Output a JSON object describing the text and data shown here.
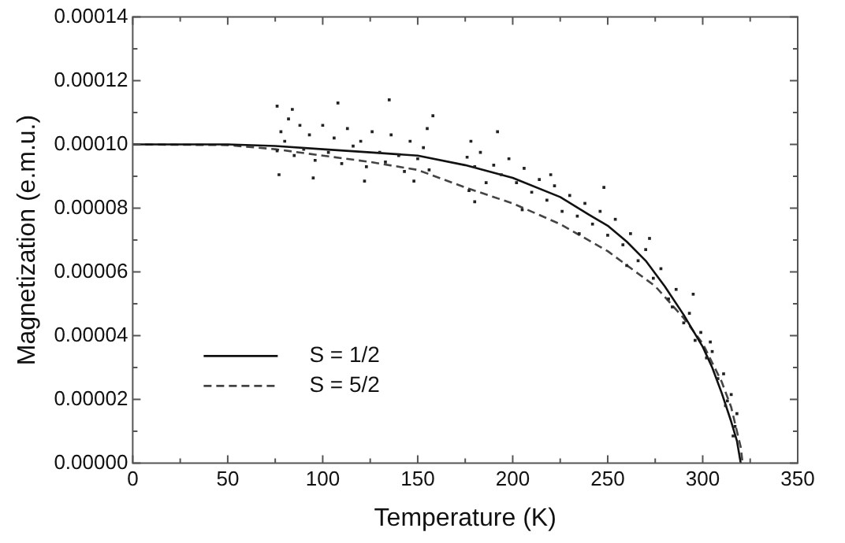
{
  "chart_data": {
    "type": "line",
    "xlabel": "Temperature (K)",
    "ylabel": "Magnetization (e.m.u.)",
    "xlim": [
      0,
      350
    ],
    "ylim": [
      0,
      0.00014
    ],
    "xticks": [
      0,
      {
        "value": 25,
        "label": null
      },
      50,
      {
        "value": 75,
        "label": null
      },
      100,
      {
        "value": 125,
        "label": null
      },
      150,
      {
        "value": 175,
        "label": null
      },
      200,
      {
        "value": 225,
        "label": null
      },
      250,
      {
        "value": 275,
        "label": null
      },
      300,
      {
        "value": 325,
        "label": null
      },
      350
    ],
    "yticks": [
      {
        "value": 0,
        "label": "0.00000"
      },
      {
        "value": 1e-05,
        "label": null
      },
      {
        "value": 2e-05,
        "label": "0.00002"
      },
      {
        "value": 3e-05,
        "label": null
      },
      {
        "value": 4e-05,
        "label": "0.00004"
      },
      {
        "value": 5e-05,
        "label": null
      },
      {
        "value": 6e-05,
        "label": "0.00006"
      },
      {
        "value": 7e-05,
        "label": null
      },
      {
        "value": 8e-05,
        "label": "0.00008"
      },
      {
        "value": 9e-05,
        "label": null
      },
      {
        "value": 0.0001,
        "label": "0.00010"
      },
      {
        "value": 0.00011,
        "label": null
      },
      {
        "value": 0.00012,
        "label": "0.00012"
      },
      {
        "value": 0.00013,
        "label": null
      },
      {
        "value": 0.00014,
        "label": "0.00014"
      }
    ],
    "grid": false,
    "legend": "bottom left",
    "series": [
      {
        "type": "scatter",
        "color": "#222222",
        "marker": "square",
        "x": [
          76,
          77,
          78,
          80,
          82,
          85,
          88,
          90,
          93,
          96,
          100,
          103,
          106,
          110,
          113,
          116,
          120,
          123,
          126,
          130,
          133,
          136,
          140,
          143,
          146,
          150,
          153,
          156,
          158,
          176,
          177,
          178,
          180,
          183,
          186,
          190,
          194,
          198,
          202,
          206,
          210,
          214,
          218,
          222,
          226,
          230,
          234,
          238,
          242,
          246,
          250,
          254,
          258,
          262,
          266,
          270,
          274,
          278,
          282,
          286,
          290,
          293,
          296,
          299,
          302,
          305,
          308,
          311,
          313,
          315,
          317,
          318,
          76,
          84,
          95,
          108,
          122,
          135,
          148,
          155,
          180,
          192,
          205,
          220,
          235,
          248,
          260,
          272,
          284,
          295,
          304,
          312,
          316
        ],
        "values": [
          0.000112,
          9.05e-05,
          0.000104,
          0.000101,
          0.000108,
          9.65e-05,
          0.000106,
          9.85e-05,
          0.000103,
          9.5e-05,
          0.000106,
          9.75e-05,
          0.000102,
          9.4e-05,
          0.000105,
          9.95e-05,
          0.000101,
          9.3e-05,
          0.000104,
          9.75e-05,
          9.45e-05,
          0.000103,
          9.65e-05,
          9.15e-05,
          0.000101,
          9.55e-05,
          9.9e-05,
          9.2e-05,
          0.000109,
          9.6e-05,
          8.55e-05,
          0.000101,
          9.3e-05,
          9.75e-05,
          8.8e-05,
          9.35e-05,
          9.05e-05,
          9.55e-05,
          8.8e-05,
          9.25e-05,
          8.5e-05,
          8.9e-05,
          8.25e-05,
          8.7e-05,
          7.9e-05,
          8.4e-05,
          7.75e-05,
          8.15e-05,
          7.5e-05,
          7.9e-05,
          7.15e-05,
          7.65e-05,
          6.85e-05,
          7.2e-05,
          6.35e-05,
          6.7e-05,
          5.8e-05,
          6.1e-05,
          5.15e-05,
          5.45e-05,
          4.4e-05,
          4.7e-05,
          3.85e-05,
          4.1e-05,
          3.3e-05,
          3.5e-05,
          2.65e-05,
          2.8e-05,
          1.95e-05,
          2.15e-05,
          1.15e-05,
          1.55e-05,
          9.8e-05,
          0.000111,
          8.95e-05,
          0.000113,
          8.85e-05,
          0.000114,
          8.85e-05,
          0.000105,
          8.2e-05,
          0.000104,
          7.95e-05,
          9.05e-05,
          7.2e-05,
          8.65e-05,
          6.2e-05,
          7.05e-05,
          4.9e-05,
          5.3e-05,
          3.8e-05,
          1.8e-05,
          8.5e-06
        ]
      },
      {
        "name": "S = 1/2",
        "color": "#111111",
        "line_style": "solid",
        "marker": "none",
        "x": [
          0,
          50,
          75,
          100,
          125,
          150,
          175,
          200,
          225,
          240,
          250,
          260,
          270,
          280,
          290,
          300,
          305,
          310,
          315,
          318,
          320
        ],
        "values": [
          0.0001,
          0.0001,
          9.95e-05,
          9.85e-05,
          9.75e-05,
          9.65e-05,
          9.35e-05,
          8.95e-05,
          8.35e-05,
          7.8e-05,
          7.45e-05,
          6.95e-05,
          6.35e-05,
          5.55e-05,
          4.65e-05,
          3.65e-05,
          3e-05,
          2.2e-05,
          1.3e-05,
          7e-06,
          0
        ]
      },
      {
        "name": "S = 5/2",
        "color": "#444444",
        "line_style": "dashed",
        "marker": "none",
        "x": [
          0,
          50,
          75,
          100,
          125,
          150,
          175,
          200,
          225,
          250,
          275,
          290,
          300,
          310,
          315,
          320,
          321
        ],
        "values": [
          0.0001,
          9.98e-05,
          9.85e-05,
          9.65e-05,
          9.45e-05,
          9.2e-05,
          8.65e-05,
          8.15e-05,
          7.5e-05,
          6.65e-05,
          5.55e-05,
          4.55e-05,
          3.75e-05,
          2.55e-05,
          1.75e-05,
          5e-06,
          0
        ]
      }
    ]
  }
}
